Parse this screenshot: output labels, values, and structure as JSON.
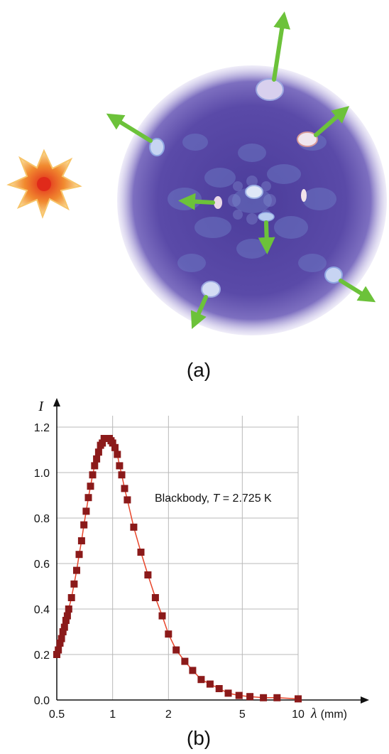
{
  "panel_a": {
    "label": "(a)"
  },
  "panel_b": {
    "label": "(b)"
  },
  "colors": {
    "sphere": "#5a4aa8",
    "sphere_glow": "#b9aee0",
    "arrow": "#6cc23a",
    "marker": "#8b1a1a",
    "curve": "#e8452a",
    "grid": "#b9b9b9",
    "star_outer": "#f6c25a",
    "star_inner": "#e8452a"
  },
  "chart_data": {
    "type": "scatter",
    "x_scale": "log",
    "xlim": [
      0.5,
      10
    ],
    "ylim": [
      0,
      1.25
    ],
    "xticks": [
      0.5,
      1,
      2,
      5,
      10
    ],
    "xtick_labels": [
      "0.5",
      "1",
      "2",
      "5",
      "10"
    ],
    "yticks": [
      0,
      0.2,
      0.4,
      0.6,
      0.8,
      1.0,
      1.2
    ],
    "ytick_labels": [
      "0.0",
      "0.2",
      "0.4",
      "0.6",
      "0.8",
      "1.0",
      "1.2"
    ],
    "xlabel_var": "λ",
    "xlabel_unit": "(mm)",
    "ylabel": "I",
    "grid": true,
    "annotation": {
      "prefix": "Blackbody, ",
      "var": "T",
      "suffix": " = 2.725 K"
    },
    "series": [
      {
        "name": "Blackbody, T = 2.725 K",
        "x": [
          0.5,
          0.51,
          0.52,
          0.53,
          0.54,
          0.55,
          0.56,
          0.57,
          0.58,
          0.6,
          0.62,
          0.64,
          0.66,
          0.68,
          0.7,
          0.72,
          0.74,
          0.76,
          0.78,
          0.8,
          0.82,
          0.84,
          0.86,
          0.88,
          0.9,
          0.92,
          0.94,
          0.96,
          0.98,
          1.0,
          1.03,
          1.06,
          1.09,
          1.12,
          1.16,
          1.2,
          1.3,
          1.42,
          1.55,
          1.7,
          1.85,
          2.0,
          2.2,
          2.45,
          2.7,
          3.0,
          3.35,
          3.75,
          4.2,
          4.8,
          5.5,
          6.5,
          7.7,
          10.0
        ],
        "y": [
          0.2,
          0.22,
          0.25,
          0.27,
          0.3,
          0.32,
          0.35,
          0.37,
          0.4,
          0.45,
          0.51,
          0.57,
          0.64,
          0.7,
          0.77,
          0.83,
          0.89,
          0.94,
          0.99,
          1.03,
          1.06,
          1.09,
          1.12,
          1.13,
          1.15,
          1.15,
          1.15,
          1.15,
          1.14,
          1.13,
          1.11,
          1.08,
          1.03,
          0.99,
          0.93,
          0.88,
          0.76,
          0.65,
          0.55,
          0.45,
          0.37,
          0.29,
          0.22,
          0.17,
          0.13,
          0.09,
          0.07,
          0.05,
          0.03,
          0.02,
          0.015,
          0.01,
          0.01,
          0.005
        ]
      }
    ]
  }
}
